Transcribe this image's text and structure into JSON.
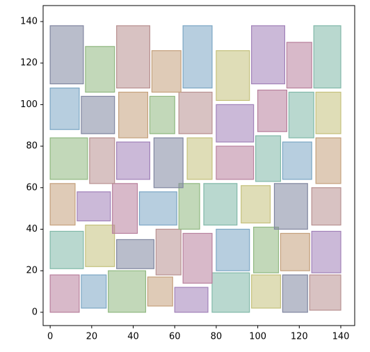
{
  "chart_data": {
    "type": "rectangles",
    "xlim": [
      -3.4,
      146.7
    ],
    "ylim": [
      -6.4,
      147.7
    ],
    "xticks": [
      0,
      20,
      40,
      60,
      80,
      100,
      120,
      140
    ],
    "yticks": [
      0,
      20,
      40,
      60,
      80,
      100,
      120,
      140
    ],
    "rects": [
      [
        0,
        0,
        14,
        18
      ],
      [
        15,
        2,
        12,
        16
      ],
      [
        28,
        0,
        18,
        20
      ],
      [
        47,
        3,
        12,
        14
      ],
      [
        60,
        0,
        16,
        12
      ],
      [
        78,
        0,
        18,
        19
      ],
      [
        97,
        2,
        14,
        16
      ],
      [
        112,
        0,
        12,
        18
      ],
      [
        125,
        1,
        15,
        17
      ],
      [
        0,
        21,
        16,
        18
      ],
      [
        17,
        22,
        14,
        20
      ],
      [
        32,
        21,
        18,
        14
      ],
      [
        51,
        18,
        12,
        22
      ],
      [
        64,
        14,
        14,
        24
      ],
      [
        80,
        20,
        16,
        20
      ],
      [
        98,
        19,
        12,
        22
      ],
      [
        111,
        20,
        14,
        18
      ],
      [
        126,
        19,
        14,
        20
      ],
      [
        0,
        42,
        12,
        20
      ],
      [
        13,
        44,
        16,
        14
      ],
      [
        30,
        38,
        12,
        24
      ],
      [
        43,
        42,
        18,
        16
      ],
      [
        62,
        40,
        10,
        22
      ],
      [
        74,
        42,
        16,
        20
      ],
      [
        92,
        43,
        14,
        18
      ],
      [
        108,
        40,
        16,
        22
      ],
      [
        126,
        42,
        14,
        18
      ],
      [
        0,
        64,
        18,
        20
      ],
      [
        19,
        62,
        12,
        22
      ],
      [
        32,
        64,
        16,
        18
      ],
      [
        50,
        60,
        14,
        24
      ],
      [
        66,
        64,
        12,
        20
      ],
      [
        80,
        64,
        18,
        16
      ],
      [
        99,
        63,
        12,
        22
      ],
      [
        112,
        64,
        14,
        18
      ],
      [
        128,
        62,
        12,
        22
      ],
      [
        0,
        88,
        14,
        20
      ],
      [
        15,
        86,
        16,
        18
      ],
      [
        33,
        84,
        14,
        22
      ],
      [
        48,
        86,
        12,
        18
      ],
      [
        62,
        86,
        16,
        20
      ],
      [
        80,
        82,
        18,
        18
      ],
      [
        100,
        87,
        14,
        20
      ],
      [
        115,
        84,
        12,
        22
      ],
      [
        128,
        86,
        12,
        20
      ],
      [
        0,
        110,
        16,
        28
      ],
      [
        17,
        106,
        14,
        22
      ],
      [
        32,
        108,
        16,
        30
      ],
      [
        49,
        106,
        14,
        20
      ],
      [
        64,
        108,
        14,
        30
      ],
      [
        80,
        102,
        16,
        24
      ],
      [
        97,
        110,
        16,
        28
      ],
      [
        114,
        108,
        12,
        22
      ],
      [
        127,
        108,
        13,
        30
      ]
    ],
    "colors": [
      "#e6a0c4",
      "#9ad0f5",
      "#b4e6a0",
      "#f5c89a",
      "#c8a0e6",
      "#a0e6d2",
      "#f5f09a",
      "#a0a8c8",
      "#e6b4b4",
      "#a0e6d2",
      "#f5f09a",
      "#a0a8c8",
      "#e6b4b4",
      "#e6a0c4",
      "#9ad0f5",
      "#b4e6a0",
      "#f5c89a",
      "#c8a0e6",
      "#f5c89a",
      "#c8a0e6",
      "#e6a0c4",
      "#9ad0f5",
      "#b4e6a0",
      "#a0e6d2",
      "#f5f09a",
      "#a0a8c8",
      "#e6b4b4",
      "#b4e6a0",
      "#e6b4b4",
      "#c8a0e6",
      "#a0a8c8",
      "#f5f09a",
      "#e6a0c4",
      "#a0e6d2",
      "#9ad0f5",
      "#f5c89a",
      "#9ad0f5",
      "#a0a8c8",
      "#f5c89a",
      "#b4e6a0",
      "#e6b4b4",
      "#c8a0e6",
      "#e6a0c4",
      "#a0e6d2",
      "#f5f09a",
      "#a0a8c8",
      "#b4e6a0",
      "#e6b4b4",
      "#f5c89a",
      "#9ad0f5",
      "#f5f09a",
      "#c8a0e6",
      "#e6a0c4",
      "#a0e6d2"
    ]
  }
}
